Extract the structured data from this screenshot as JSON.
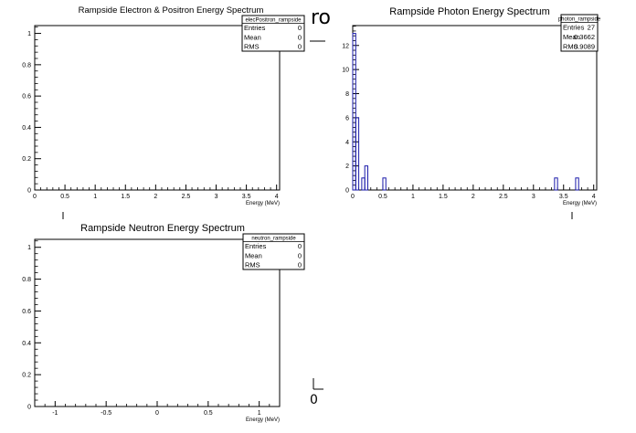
{
  "chart_data": [
    {
      "type": "bar",
      "title": "Rampside Electron & Positron Energy Spectrum",
      "xlabel": "Energy (MeV)",
      "ylabel": "",
      "xlim": [
        0,
        4.05
      ],
      "ylim": [
        0,
        1.05
      ],
      "xticks": [
        "0",
        "0.5",
        "1",
        "1.5",
        "2",
        "2.5",
        "3",
        "3.5",
        "4"
      ],
      "yticks": [
        "0",
        "0.2",
        "0.4",
        "0.6",
        "0.8",
        "1"
      ],
      "bins": [],
      "stats": {
        "name": "elecPositron_rampside",
        "rows": [
          [
            "Entries",
            "0"
          ],
          [
            "Mean",
            "0"
          ],
          [
            "RMS",
            "0"
          ]
        ]
      }
    },
    {
      "type": "bar",
      "title": "Rampside Photon Energy Spectrum",
      "xlabel": "Energy (MeV)",
      "ylabel": "",
      "xlim": [
        0,
        4.05
      ],
      "ylim": [
        0,
        13.65
      ],
      "xticks": [
        "0",
        "0.5",
        "1",
        "1.5",
        "2",
        "2.5",
        "3",
        "3.5",
        "4"
      ],
      "yticks": [
        "0",
        "2",
        "4",
        "6",
        "8",
        "10",
        "12"
      ],
      "bin_width": 0.05,
      "bins": [
        {
          "x": 0.025,
          "y": 13
        },
        {
          "x": 0.075,
          "y": 6
        },
        {
          "x": 0.175,
          "y": 1
        },
        {
          "x": 0.225,
          "y": 2
        },
        {
          "x": 0.525,
          "y": 1
        },
        {
          "x": 3.375,
          "y": 1
        },
        {
          "x": 3.725,
          "y": 1
        }
      ],
      "stats": {
        "name": "photon_rampside",
        "rows": [
          [
            "Entries",
            "27"
          ],
          [
            "Mean",
            "0.3662"
          ],
          [
            "RMS",
            "0.9089"
          ]
        ]
      }
    },
    {
      "type": "bar",
      "title": "Rampside Neutron Energy Spectrum",
      "xlabel": "Energy (MeV)",
      "ylabel": "",
      "xlim": [
        -1.2,
        1.2
      ],
      "ylim": [
        0,
        1.05
      ],
      "xticks": [
        "-1",
        "-0.5",
        "0",
        "0.5",
        "1"
      ],
      "yticks": [
        "0",
        "0.2",
        "0.4",
        "0.6",
        "0.8",
        "1"
      ],
      "bins": [],
      "stats": {
        "name": "neutron_rampside",
        "rows": [
          [
            "Entries",
            "0"
          ],
          [
            "Mean",
            "0"
          ],
          [
            "RMS",
            "0"
          ]
        ]
      }
    }
  ],
  "fragments": {
    "top_right_of_first": "ro",
    "bottom_right_of_third": "0"
  },
  "colors": {
    "hist_line": "#1a1aaa",
    "frame": "#000000"
  }
}
